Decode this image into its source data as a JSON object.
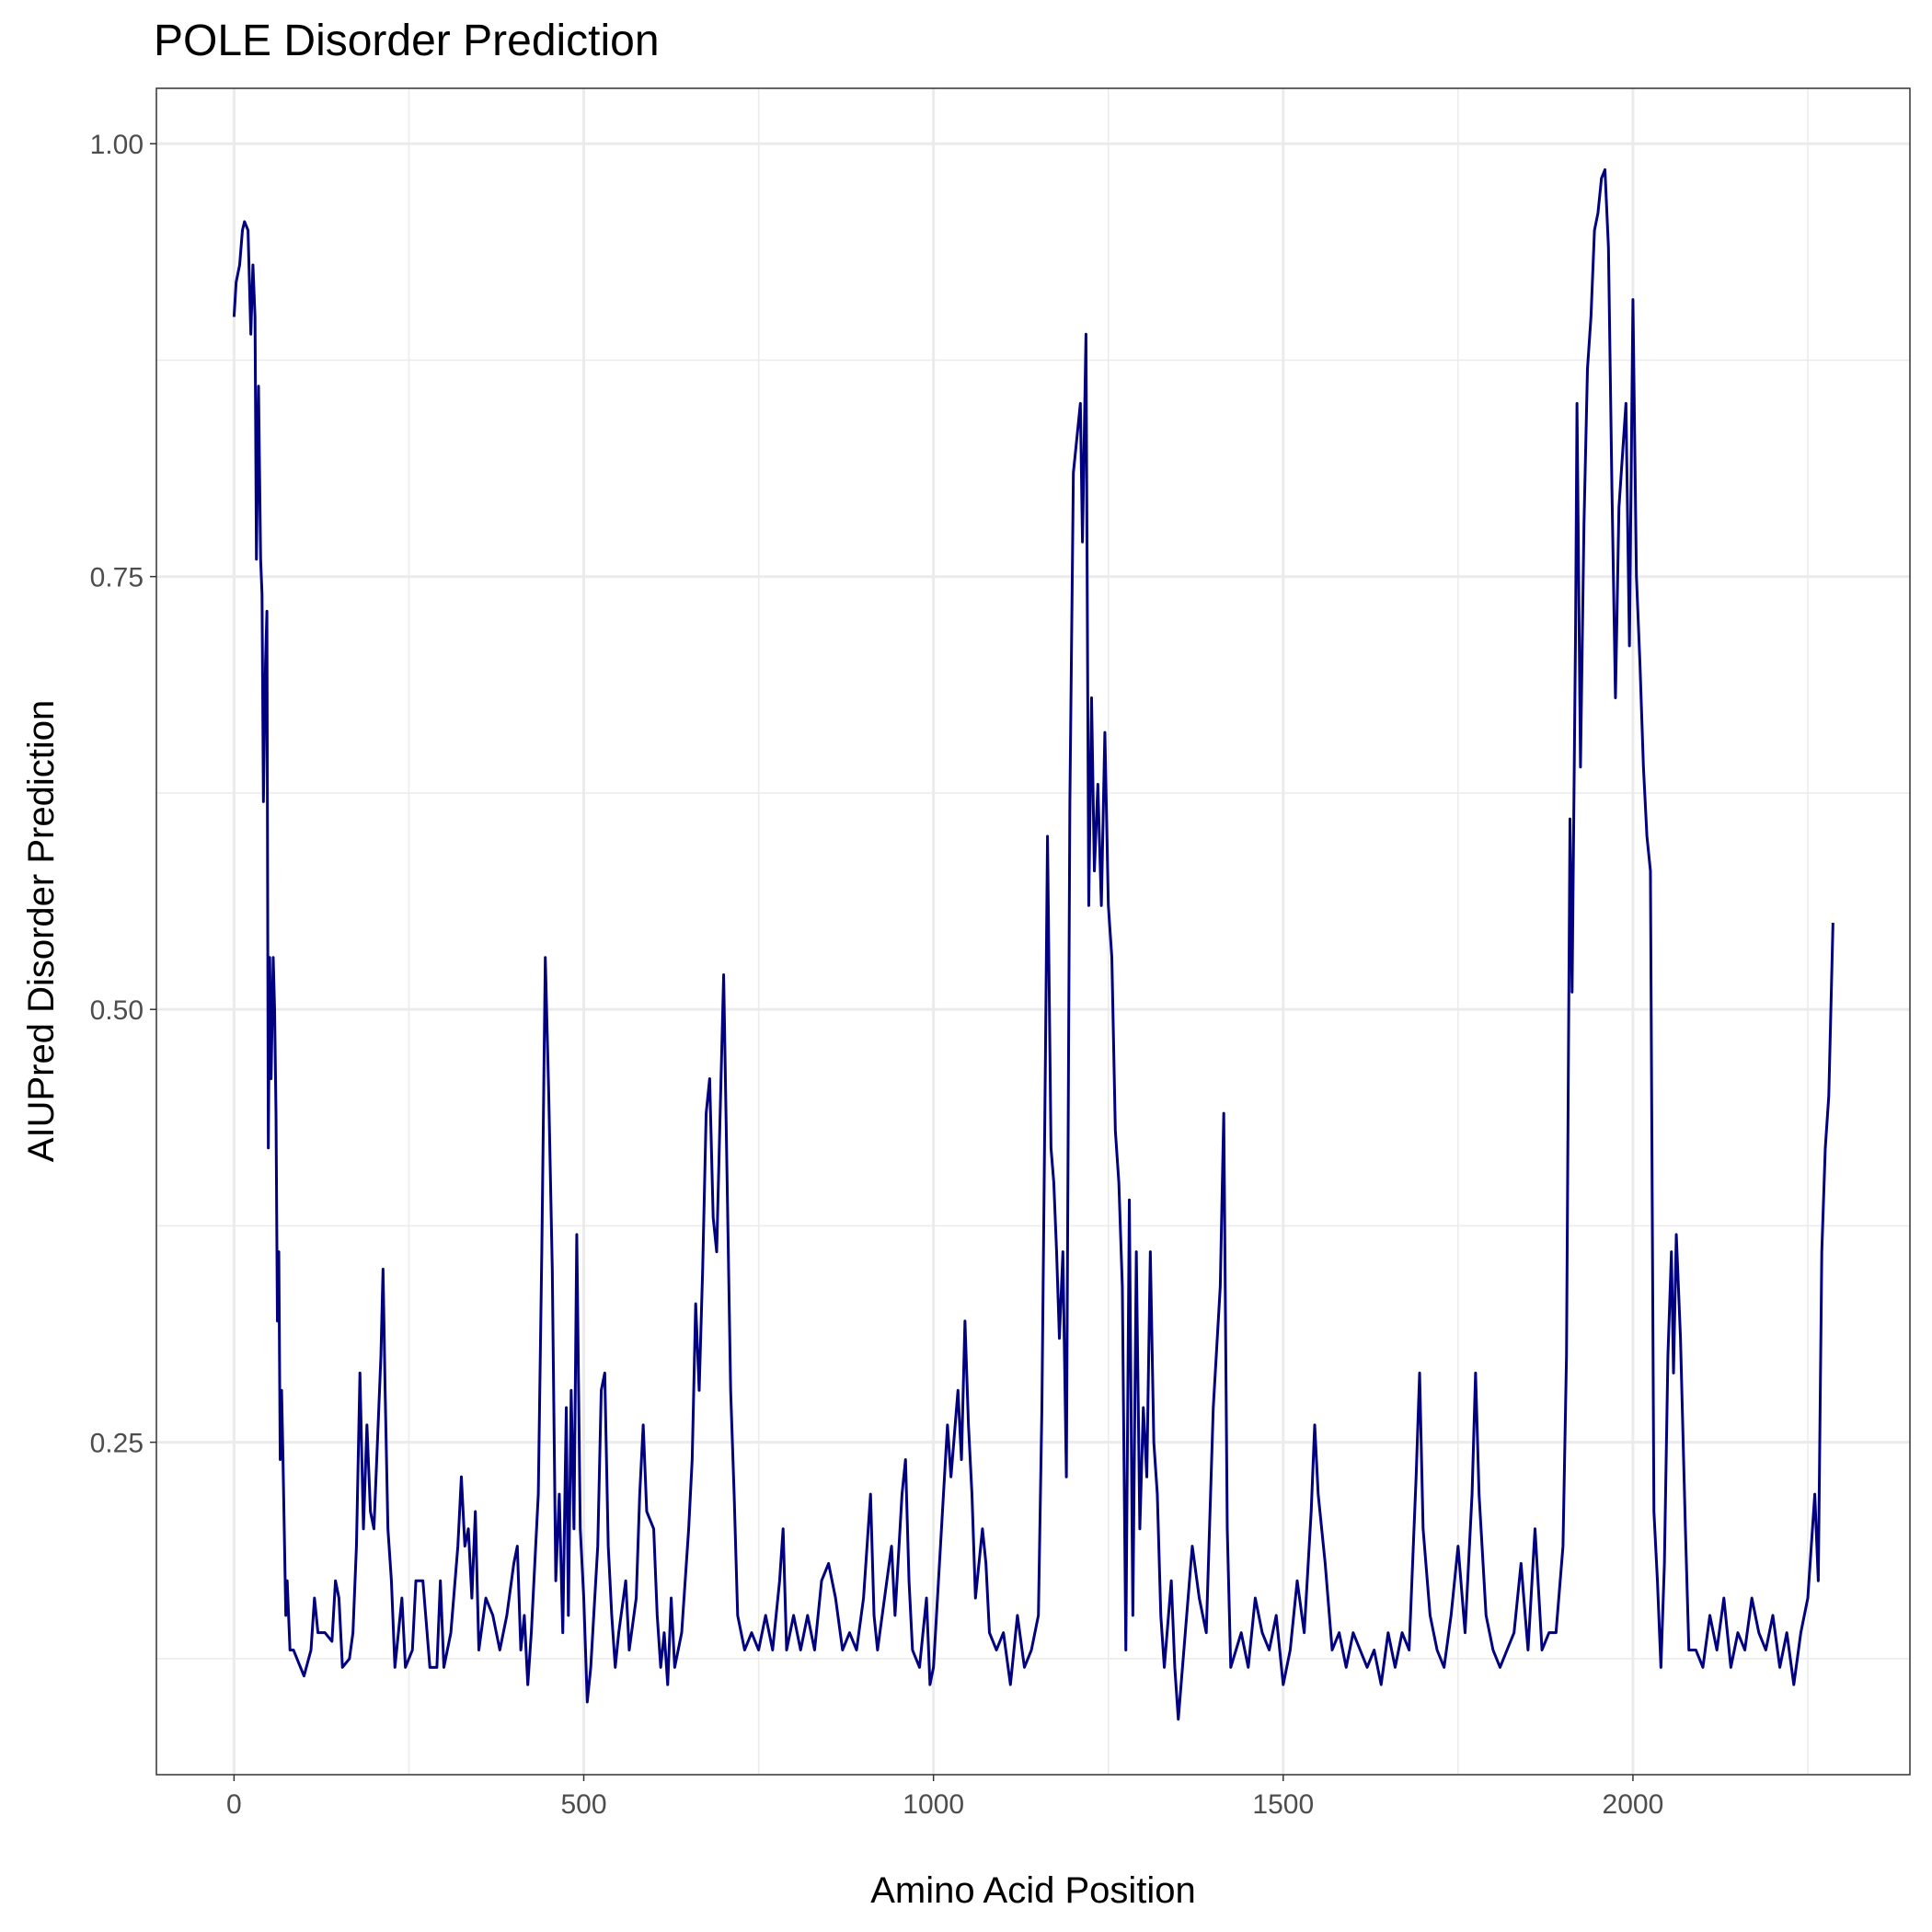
{
  "chart_data": {
    "type": "line",
    "title": "POLE Disorder Prediction",
    "x_label": "Amino Acid Position",
    "y_label": "AIUPred Disorder Prediction",
    "color": "#000080",
    "grid": true,
    "xlim": [
      -111,
      2396
    ],
    "ylim": [
      0.058,
      1.032
    ],
    "xticks": [
      0,
      500,
      1000,
      1500,
      2000
    ],
    "minor_xticks": [
      250,
      750,
      1250,
      1750,
      2250
    ],
    "yticks": [
      {
        "value": 0.25,
        "label": "0.25"
      },
      {
        "value": 0.5,
        "label": "0.50"
      },
      {
        "value": 0.75,
        "label": "0.75"
      },
      {
        "value": 1.0,
        "label": "1.00"
      }
    ],
    "minor_yticks": [
      0.125,
      0.375,
      0.625,
      0.875
    ],
    "x": [
      0,
      3,
      8,
      12,
      15,
      20,
      24,
      27,
      30,
      32,
      35,
      38,
      40,
      42,
      45,
      47,
      49,
      51,
      53,
      56,
      58,
      60,
      62,
      64,
      66,
      68,
      70,
      74,
      76,
      80,
      85,
      90,
      100,
      110,
      115,
      120,
      130,
      140,
      145,
      150,
      155,
      165,
      170,
      175,
      180,
      185,
      190,
      195,
      200,
      205,
      210,
      213,
      216,
      220,
      225,
      230,
      240,
      245,
      255,
      260,
      270,
      280,
      290,
      295,
      300,
      310,
      320,
      325,
      330,
      335,
      340,
      345,
      350,
      360,
      370,
      380,
      390,
      400,
      405,
      410,
      415,
      420,
      425,
      435,
      440,
      445,
      450,
      455,
      460,
      465,
      470,
      475,
      478,
      482,
      486,
      490,
      495,
      500,
      505,
      510,
      520,
      525,
      530,
      535,
      540,
      545,
      550,
      560,
      565,
      575,
      580,
      585,
      590,
      600,
      605,
      610,
      615,
      620,
      625,
      630,
      640,
      650,
      655,
      660,
      665,
      670,
      675,
      680,
      685,
      690,
      695,
      700,
      705,
      710,
      715,
      720,
      730,
      740,
      750,
      760,
      770,
      780,
      785,
      790,
      800,
      810,
      820,
      830,
      840,
      850,
      860,
      870,
      880,
      890,
      900,
      910,
      915,
      920,
      930,
      940,
      945,
      955,
      960,
      965,
      970,
      980,
      990,
      995,
      1000,
      1010,
      1020,
      1025,
      1035,
      1040,
      1045,
      1050,
      1055,
      1060,
      1070,
      1075,
      1080,
      1090,
      1100,
      1110,
      1120,
      1130,
      1140,
      1150,
      1155,
      1160,
      1163,
      1168,
      1172,
      1176,
      1180,
      1185,
      1190,
      1195,
      1200,
      1205,
      1210,
      1213,
      1218,
      1222,
      1226,
      1230,
      1235,
      1240,
      1245,
      1250,
      1255,
      1260,
      1265,
      1270,
      1275,
      1280,
      1285,
      1290,
      1295,
      1300,
      1305,
      1310,
      1315,
      1320,
      1325,
      1330,
      1340,
      1345,
      1350,
      1360,
      1370,
      1380,
      1390,
      1400,
      1410,
      1415,
      1420,
      1425,
      1440,
      1450,
      1460,
      1470,
      1480,
      1490,
      1500,
      1510,
      1520,
      1530,
      1540,
      1545,
      1550,
      1560,
      1570,
      1580,
      1590,
      1600,
      1610,
      1620,
      1630,
      1640,
      1650,
      1660,
      1670,
      1680,
      1690,
      1695,
      1700,
      1710,
      1720,
      1730,
      1740,
      1750,
      1760,
      1770,
      1775,
      1780,
      1790,
      1800,
      1810,
      1820,
      1830,
      1840,
      1850,
      1860,
      1870,
      1880,
      1890,
      1900,
      1905,
      1910,
      1913,
      1918,
      1920,
      1925,
      1930,
      1935,
      1940,
      1945,
      1950,
      1955,
      1960,
      1965,
      1970,
      1975,
      1980,
      1985,
      1990,
      1995,
      2000,
      2005,
      2010,
      2015,
      2020,
      2025,
      2030,
      2035,
      2040,
      2045,
      2050,
      2055,
      2058,
      2062,
      2068,
      2075,
      2080,
      2090,
      2100,
      2110,
      2120,
      2130,
      2140,
      2150,
      2160,
      2170,
      2180,
      2190,
      2200,
      2210,
      2220,
      2230,
      2240,
      2250,
      2260,
      2265,
      2270,
      2275,
      2280,
      2286
    ],
    "values": [
      0.9,
      0.92,
      0.93,
      0.95,
      0.955,
      0.95,
      0.89,
      0.93,
      0.9,
      0.76,
      0.86,
      0.76,
      0.74,
      0.62,
      0.7,
      0.73,
      0.42,
      0.53,
      0.46,
      0.53,
      0.5,
      0.44,
      0.32,
      0.36,
      0.24,
      0.28,
      0.24,
      0.15,
      0.17,
      0.13,
      0.13,
      0.125,
      0.115,
      0.13,
      0.16,
      0.14,
      0.14,
      0.135,
      0.17,
      0.16,
      0.12,
      0.125,
      0.14,
      0.19,
      0.29,
      0.2,
      0.26,
      0.21,
      0.2,
      0.25,
      0.3,
      0.35,
      0.28,
      0.2,
      0.17,
      0.12,
      0.16,
      0.12,
      0.13,
      0.17,
      0.17,
      0.12,
      0.12,
      0.17,
      0.12,
      0.14,
      0.19,
      0.23,
      0.19,
      0.2,
      0.16,
      0.21,
      0.13,
      0.16,
      0.15,
      0.13,
      0.15,
      0.18,
      0.19,
      0.13,
      0.15,
      0.11,
      0.14,
      0.22,
      0.36,
      0.53,
      0.45,
      0.35,
      0.17,
      0.22,
      0.14,
      0.27,
      0.15,
      0.28,
      0.2,
      0.37,
      0.2,
      0.16,
      0.1,
      0.12,
      0.19,
      0.28,
      0.29,
      0.19,
      0.15,
      0.12,
      0.14,
      0.17,
      0.13,
      0.16,
      0.22,
      0.26,
      0.21,
      0.2,
      0.15,
      0.12,
      0.14,
      0.11,
      0.16,
      0.12,
      0.14,
      0.2,
      0.24,
      0.33,
      0.28,
      0.35,
      0.44,
      0.46,
      0.38,
      0.36,
      0.44,
      0.52,
      0.4,
      0.28,
      0.22,
      0.15,
      0.13,
      0.14,
      0.13,
      0.15,
      0.13,
      0.17,
      0.2,
      0.13,
      0.15,
      0.13,
      0.15,
      0.13,
      0.17,
      0.18,
      0.16,
      0.13,
      0.14,
      0.13,
      0.16,
      0.22,
      0.15,
      0.13,
      0.16,
      0.19,
      0.15,
      0.22,
      0.24,
      0.17,
      0.13,
      0.12,
      0.16,
      0.11,
      0.12,
      0.19,
      0.26,
      0.23,
      0.28,
      0.24,
      0.32,
      0.26,
      0.22,
      0.16,
      0.2,
      0.18,
      0.14,
      0.13,
      0.14,
      0.11,
      0.15,
      0.12,
      0.13,
      0.15,
      0.27,
      0.47,
      0.6,
      0.42,
      0.4,
      0.36,
      0.31,
      0.36,
      0.23,
      0.62,
      0.81,
      0.83,
      0.85,
      0.77,
      0.89,
      0.56,
      0.68,
      0.58,
      0.63,
      0.56,
      0.66,
      0.56,
      0.53,
      0.43,
      0.4,
      0.34,
      0.13,
      0.39,
      0.15,
      0.36,
      0.2,
      0.27,
      0.23,
      0.36,
      0.25,
      0.22,
      0.15,
      0.12,
      0.17,
      0.12,
      0.09,
      0.14,
      0.19,
      0.16,
      0.14,
      0.27,
      0.34,
      0.44,
      0.2,
      0.12,
      0.14,
      0.12,
      0.16,
      0.14,
      0.13,
      0.15,
      0.11,
      0.13,
      0.17,
      0.14,
      0.21,
      0.26,
      0.22,
      0.18,
      0.13,
      0.14,
      0.12,
      0.14,
      0.13,
      0.12,
      0.13,
      0.11,
      0.14,
      0.12,
      0.14,
      0.13,
      0.23,
      0.29,
      0.2,
      0.15,
      0.13,
      0.12,
      0.15,
      0.19,
      0.14,
      0.22,
      0.29,
      0.22,
      0.15,
      0.13,
      0.12,
      0.13,
      0.14,
      0.18,
      0.13,
      0.2,
      0.13,
      0.14,
      0.14,
      0.19,
      0.3,
      0.61,
      0.51,
      0.72,
      0.85,
      0.64,
      0.78,
      0.87,
      0.9,
      0.95,
      0.96,
      0.98,
      0.985,
      0.94,
      0.8,
      0.68,
      0.79,
      0.82,
      0.85,
      0.71,
      0.91,
      0.75,
      0.7,
      0.64,
      0.6,
      0.58,
      0.21,
      0.17,
      0.12,
      0.18,
      0.3,
      0.36,
      0.29,
      0.37,
      0.31,
      0.2,
      0.13,
      0.13,
      0.12,
      0.15,
      0.13,
      0.16,
      0.12,
      0.14,
      0.13,
      0.16,
      0.14,
      0.13,
      0.15,
      0.12,
      0.14,
      0.11,
      0.14,
      0.16,
      0.22,
      0.17,
      0.36,
      0.42,
      0.45,
      0.55
    ]
  }
}
